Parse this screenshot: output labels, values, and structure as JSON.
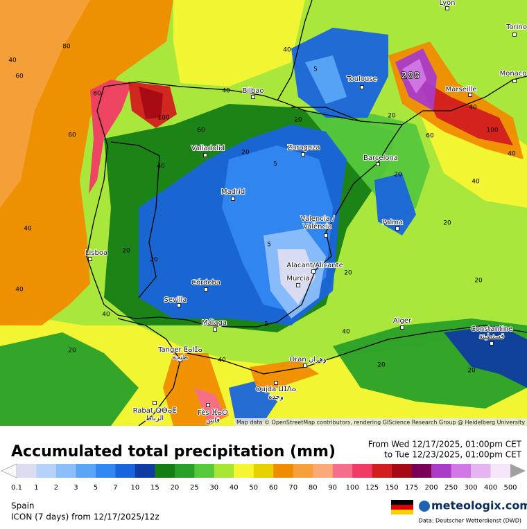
{
  "header": {
    "title": "Accumulated total precipitation (mm)",
    "period_from": "From Wed 12/17/2025, 01:00pm CET",
    "period_to": "to Tue 12/23/2025, 01:00pm CET"
  },
  "map": {
    "attribution": "Map data © OpenStreetMap contributors, rendering GIScience Research Group @ Heidelberg University",
    "cities": [
      [
        "Lyon"
      ],
      [
        "Torino"
      ],
      [
        "Monaco"
      ],
      [
        "Marseille"
      ],
      [
        "Toulouse"
      ],
      [
        "Bilbao"
      ],
      [
        "Valladolid"
      ],
      [
        "Zaragoza"
      ],
      [
        "Barcelona"
      ],
      [
        "Madrid"
      ],
      [
        "Palma"
      ],
      [
        "Valencia /",
        "València"
      ],
      [
        "Lisboa"
      ],
      [
        "Alacant/Alicante"
      ],
      [
        "Murcia"
      ],
      [
        "Córdoba"
      ],
      [
        "Sevilla"
      ],
      [
        "Málaga"
      ],
      [
        "Alger"
      ],
      [
        "Constantine",
        "قسنطينة"
      ],
      [
        "Tanger ⵟⴰⵏⵊⴰ",
        "طنجة"
      ],
      [
        "Oran وهران"
      ],
      [
        "Oujda ⵡⵊⴷⴰ",
        "وجدة"
      ],
      [
        "Rabat ⵕⴱⴰⵟ",
        "الرباط"
      ],
      [
        "Fès ⴼⴰⵙ",
        "فاس"
      ]
    ],
    "contour_labels": [
      "40",
      "80",
      "60",
      "80",
      "100",
      "60",
      "60",
      "40",
      "40",
      "40",
      "20",
      "40",
      "20",
      "40",
      "5",
      "40",
      "20",
      "5",
      "20",
      "20",
      "288",
      "60",
      "40",
      "100",
      "40",
      "20",
      "20",
      "20",
      "20",
      "5",
      "40",
      "40",
      "20",
      "20",
      "5",
      "20",
      "40"
    ]
  },
  "legend": {
    "ticks": [
      0.1,
      1,
      2,
      3,
      5,
      7,
      10,
      15,
      20,
      25,
      30,
      40,
      50,
      60,
      70,
      80,
      90,
      100,
      125,
      150,
      175,
      200,
      250,
      300,
      400,
      500
    ],
    "colors": [
      "#dcdcf0",
      "#b4d2fa",
      "#8cbefa",
      "#5aa5f5",
      "#3287f0",
      "#1964dc",
      "#0f3ca0",
      "#147d14",
      "#28a028",
      "#55c83c",
      "#a5e632",
      "#f5f532",
      "#e6d200",
      "#f08c00",
      "#f5a03c",
      "#faaa78",
      "#f56e8c",
      "#f03c64",
      "#d21e1e",
      "#a50a14",
      "#78005a",
      "#aa3cc8",
      "#d278e6",
      "#e6b4f0",
      "#f5e6fa"
    ]
  },
  "footer": {
    "region": "Spain",
    "model": "ICON (7 days)  from  12/17/2025/12z",
    "brand": "meteologix.com",
    "source": "Data: Deutscher Wetterdienst  (DWD)"
  }
}
